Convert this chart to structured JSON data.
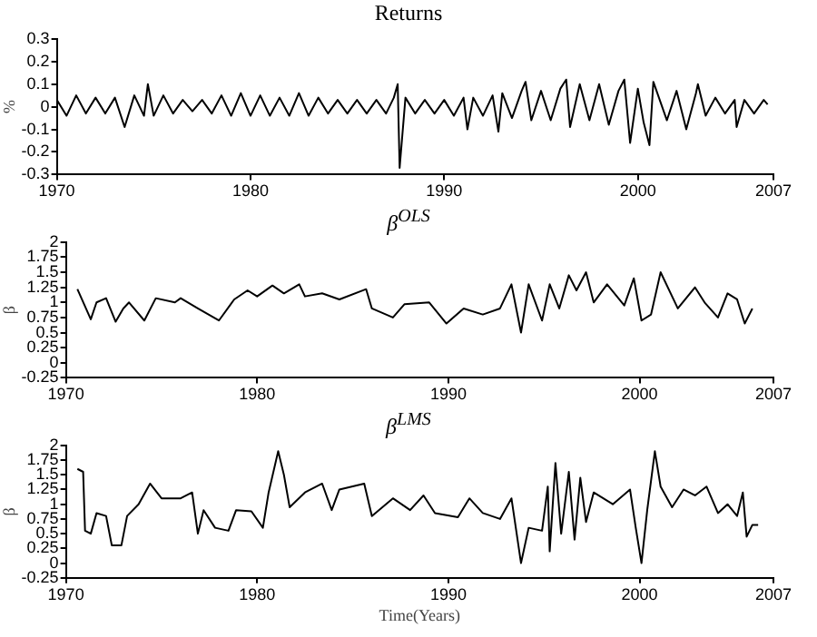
{
  "chart_data": [
    {
      "type": "line",
      "title": "Returns",
      "ylabel": "%",
      "xlim": [
        1970,
        2007
      ],
      "xticks": [
        1970,
        1980,
        1990,
        2000,
        2007
      ],
      "ylim": [
        -0.3,
        0.3
      ],
      "yticks": [
        -0.3,
        -0.2,
        -0.1,
        0,
        0.1,
        0.2,
        0.3
      ],
      "grid": false,
      "legend": false,
      "marker": "none",
      "line_style": "solid",
      "series": [
        {
          "color": "#000000",
          "x": [
            1970.0,
            1970.5,
            1971.0,
            1971.5,
            1972.0,
            1972.5,
            1973.0,
            1973.5,
            1974.0,
            1974.5,
            1974.7,
            1975.0,
            1975.5,
            1976.0,
            1976.5,
            1977.0,
            1977.5,
            1978.0,
            1978.5,
            1979.0,
            1979.5,
            1980.0,
            1980.5,
            1981.0,
            1981.5,
            1982.0,
            1982.5,
            1983.0,
            1983.5,
            1984.0,
            1984.5,
            1985.0,
            1985.5,
            1986.0,
            1986.5,
            1987.0,
            1987.4,
            1987.6,
            1987.7,
            1988.0,
            1988.5,
            1989.0,
            1989.5,
            1990.0,
            1990.5,
            1991.0,
            1991.2,
            1991.5,
            1992.0,
            1992.5,
            1992.8,
            1993.0,
            1993.5,
            1994.0,
            1994.2,
            1994.5,
            1995.0,
            1995.5,
            1996.0,
            1996.3,
            1996.5,
            1997.0,
            1997.5,
            1998.0,
            1998.5,
            1999.0,
            1999.3,
            1999.6,
            2000.0,
            2000.3,
            2000.6,
            2000.8,
            2001.5,
            2002.0,
            2002.5,
            2003.0,
            2003.1,
            2003.5,
            2004.0,
            2004.5,
            2005.0,
            2005.1,
            2005.5,
            2006.0,
            2006.5,
            2006.7
          ],
          "values": [
            0.03,
            -0.04,
            0.05,
            -0.03,
            0.04,
            -0.03,
            0.04,
            -0.09,
            0.05,
            -0.04,
            0.1,
            -0.04,
            0.05,
            -0.03,
            0.03,
            -0.02,
            0.03,
            -0.03,
            0.05,
            -0.04,
            0.06,
            -0.04,
            0.05,
            -0.04,
            0.04,
            -0.04,
            0.06,
            -0.04,
            0.04,
            -0.03,
            0.03,
            -0.03,
            0.03,
            -0.03,
            0.03,
            -0.03,
            0.04,
            0.1,
            -0.27,
            0.04,
            -0.03,
            0.03,
            -0.03,
            0.03,
            -0.04,
            0.04,
            -0.1,
            0.04,
            -0.04,
            0.05,
            -0.11,
            0.06,
            -0.05,
            0.07,
            0.11,
            -0.06,
            0.07,
            -0.06,
            0.08,
            0.12,
            -0.09,
            0.1,
            -0.06,
            0.1,
            -0.08,
            0.07,
            0.12,
            -0.16,
            0.08,
            -0.07,
            -0.17,
            0.11,
            -0.06,
            0.07,
            -0.1,
            0.06,
            0.1,
            -0.04,
            0.04,
            -0.03,
            0.03,
            -0.09,
            0.03,
            -0.03,
            0.03,
            0.01
          ]
        }
      ]
    },
    {
      "type": "line",
      "title": "β$^{OLS}$",
      "ylabel": "β",
      "xlim": [
        1970,
        2007
      ],
      "xticks": [
        1970,
        1980,
        1990,
        2000,
        2007
      ],
      "ylim": [
        -0.25,
        2
      ],
      "yticks": [
        -0.25,
        0,
        0.25,
        0.5,
        0.75,
        1,
        1.25,
        1.5,
        1.75,
        2
      ],
      "grid": false,
      "legend": false,
      "marker": "none",
      "line_style": "solid",
      "series": [
        {
          "color": "#000000",
          "x": [
            1970.6,
            1971.3,
            1971.6,
            1972.1,
            1972.6,
            1973.0,
            1973.3,
            1974.1,
            1974.7,
            1975.7,
            1976.0,
            1976.9,
            1978.0,
            1978.8,
            1979.5,
            1980.0,
            1980.8,
            1981.4,
            1982.2,
            1982.5,
            1983.4,
            1984.3,
            1985.7,
            1986.0,
            1987.1,
            1987.7,
            1989.0,
            1989.9,
            1990.8,
            1991.8,
            1992.7,
            1993.3,
            1993.8,
            1994.2,
            1994.9,
            1995.3,
            1995.8,
            1996.3,
            1996.7,
            1997.2,
            1997.6,
            1998.3,
            1999.2,
            1999.7,
            2000.1,
            2000.6,
            2001.1,
            2002.0,
            2002.9,
            2003.4,
            2004.1,
            2004.6,
            2005.1,
            2005.5,
            2005.9
          ],
          "values": [
            1.22,
            0.72,
            1.0,
            1.07,
            0.68,
            0.9,
            1.0,
            0.7,
            1.07,
            1.0,
            1.07,
            0.9,
            0.7,
            1.05,
            1.2,
            1.1,
            1.28,
            1.15,
            1.3,
            1.1,
            1.15,
            1.05,
            1.22,
            0.9,
            0.75,
            0.97,
            1.0,
            0.65,
            0.9,
            0.8,
            0.9,
            1.3,
            0.5,
            1.3,
            0.7,
            1.3,
            0.9,
            1.45,
            1.2,
            1.5,
            1.0,
            1.3,
            0.95,
            1.4,
            0.7,
            0.8,
            1.5,
            0.9,
            1.25,
            1.0,
            0.75,
            1.15,
            1.05,
            0.65,
            0.9
          ]
        }
      ]
    },
    {
      "type": "line",
      "title": "β$^{LMS}$",
      "ylabel": "β",
      "xlabel": "Time(Years)",
      "xlim": [
        1970,
        2007
      ],
      "xticks": [
        1970,
        1980,
        1990,
        2000,
        2007
      ],
      "ylim": [
        -0.25,
        2
      ],
      "yticks": [
        -0.25,
        0,
        0.25,
        0.5,
        0.75,
        1,
        1.25,
        1.5,
        1.75,
        2
      ],
      "grid": false,
      "legend": false,
      "marker": "none",
      "line_style": "solid",
      "series": [
        {
          "color": "#000000",
          "x": [
            1970.6,
            1970.9,
            1971.0,
            1971.3,
            1971.6,
            1972.1,
            1972.4,
            1972.9,
            1973.2,
            1973.8,
            1974.4,
            1975.0,
            1976.0,
            1976.6,
            1976.9,
            1977.2,
            1977.8,
            1978.5,
            1978.9,
            1979.7,
            1980.3,
            1980.6,
            1981.1,
            1981.4,
            1981.7,
            1982.5,
            1983.4,
            1983.9,
            1984.3,
            1985.6,
            1986.0,
            1987.1,
            1988.0,
            1988.7,
            1989.3,
            1990.5,
            1991.1,
            1991.8,
            1992.7,
            1993.3,
            1993.8,
            1994.2,
            1994.9,
            1995.2,
            1995.3,
            1995.6,
            1995.9,
            1996.3,
            1996.6,
            1996.9,
            1997.2,
            1997.6,
            1998.6,
            1999.5,
            1999.8,
            2000.1,
            2000.4,
            2000.8,
            2001.1,
            2001.7,
            2002.3,
            2002.9,
            2003.5,
            2004.1,
            2004.6,
            2005.1,
            2005.4,
            2005.6,
            2005.9,
            2006.2
          ],
          "values": [
            1.6,
            1.55,
            0.55,
            0.5,
            0.85,
            0.8,
            0.3,
            0.3,
            0.8,
            1.0,
            1.35,
            1.1,
            1.1,
            1.2,
            0.5,
            0.9,
            0.6,
            0.55,
            0.9,
            0.88,
            0.6,
            1.2,
            1.9,
            1.5,
            0.95,
            1.2,
            1.35,
            0.9,
            1.25,
            1.35,
            0.8,
            1.1,
            0.9,
            1.15,
            0.85,
            0.78,
            1.1,
            0.85,
            0.75,
            1.1,
            0.0,
            0.6,
            0.55,
            1.3,
            0.2,
            1.7,
            0.5,
            1.55,
            0.4,
            1.45,
            0.7,
            1.2,
            1.0,
            1.25,
            0.6,
            0.0,
            0.9,
            1.9,
            1.3,
            0.95,
            1.25,
            1.15,
            1.3,
            0.85,
            1.0,
            0.8,
            1.2,
            0.45,
            0.65,
            0.65
          ]
        }
      ]
    }
  ]
}
